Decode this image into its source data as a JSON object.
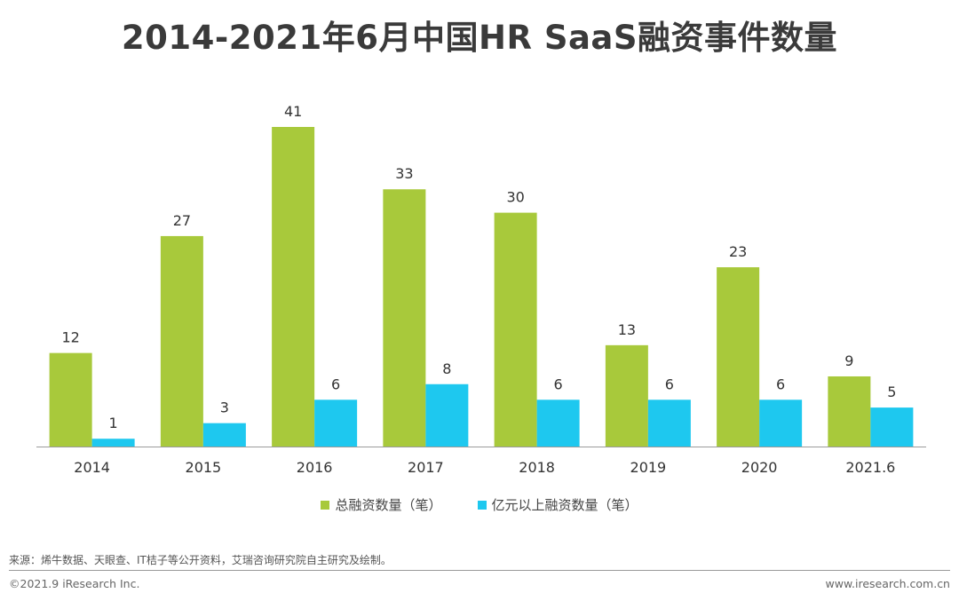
{
  "title": "2014-2021年6月中国HR SaaS融资事件数量",
  "chart_data": {
    "type": "bar",
    "categories": [
      "2014",
      "2015",
      "2016",
      "2017",
      "2018",
      "2019",
      "2020",
      "2021.6"
    ],
    "series": [
      {
        "name": "总融资数量（笔）",
        "color": "#a8c93b",
        "values": [
          12,
          27,
          41,
          33,
          30,
          13,
          23,
          9
        ]
      },
      {
        "name": "亿元以上融资数量（笔）",
        "color": "#1ec8ef",
        "values": [
          1,
          3,
          6,
          8,
          6,
          6,
          6,
          5
        ]
      }
    ],
    "ylim": [
      0,
      41
    ],
    "grid": false,
    "legend": "bottom-center",
    "data_labels": true
  },
  "footer": {
    "source": "来源：烯牛数据、天眼查、IT桔子等公开资料，艾瑞咨询研究院自主研究及绘制。",
    "copyright": "©2021.9 iResearch Inc.",
    "website": "www.iresearch.com.cn"
  }
}
